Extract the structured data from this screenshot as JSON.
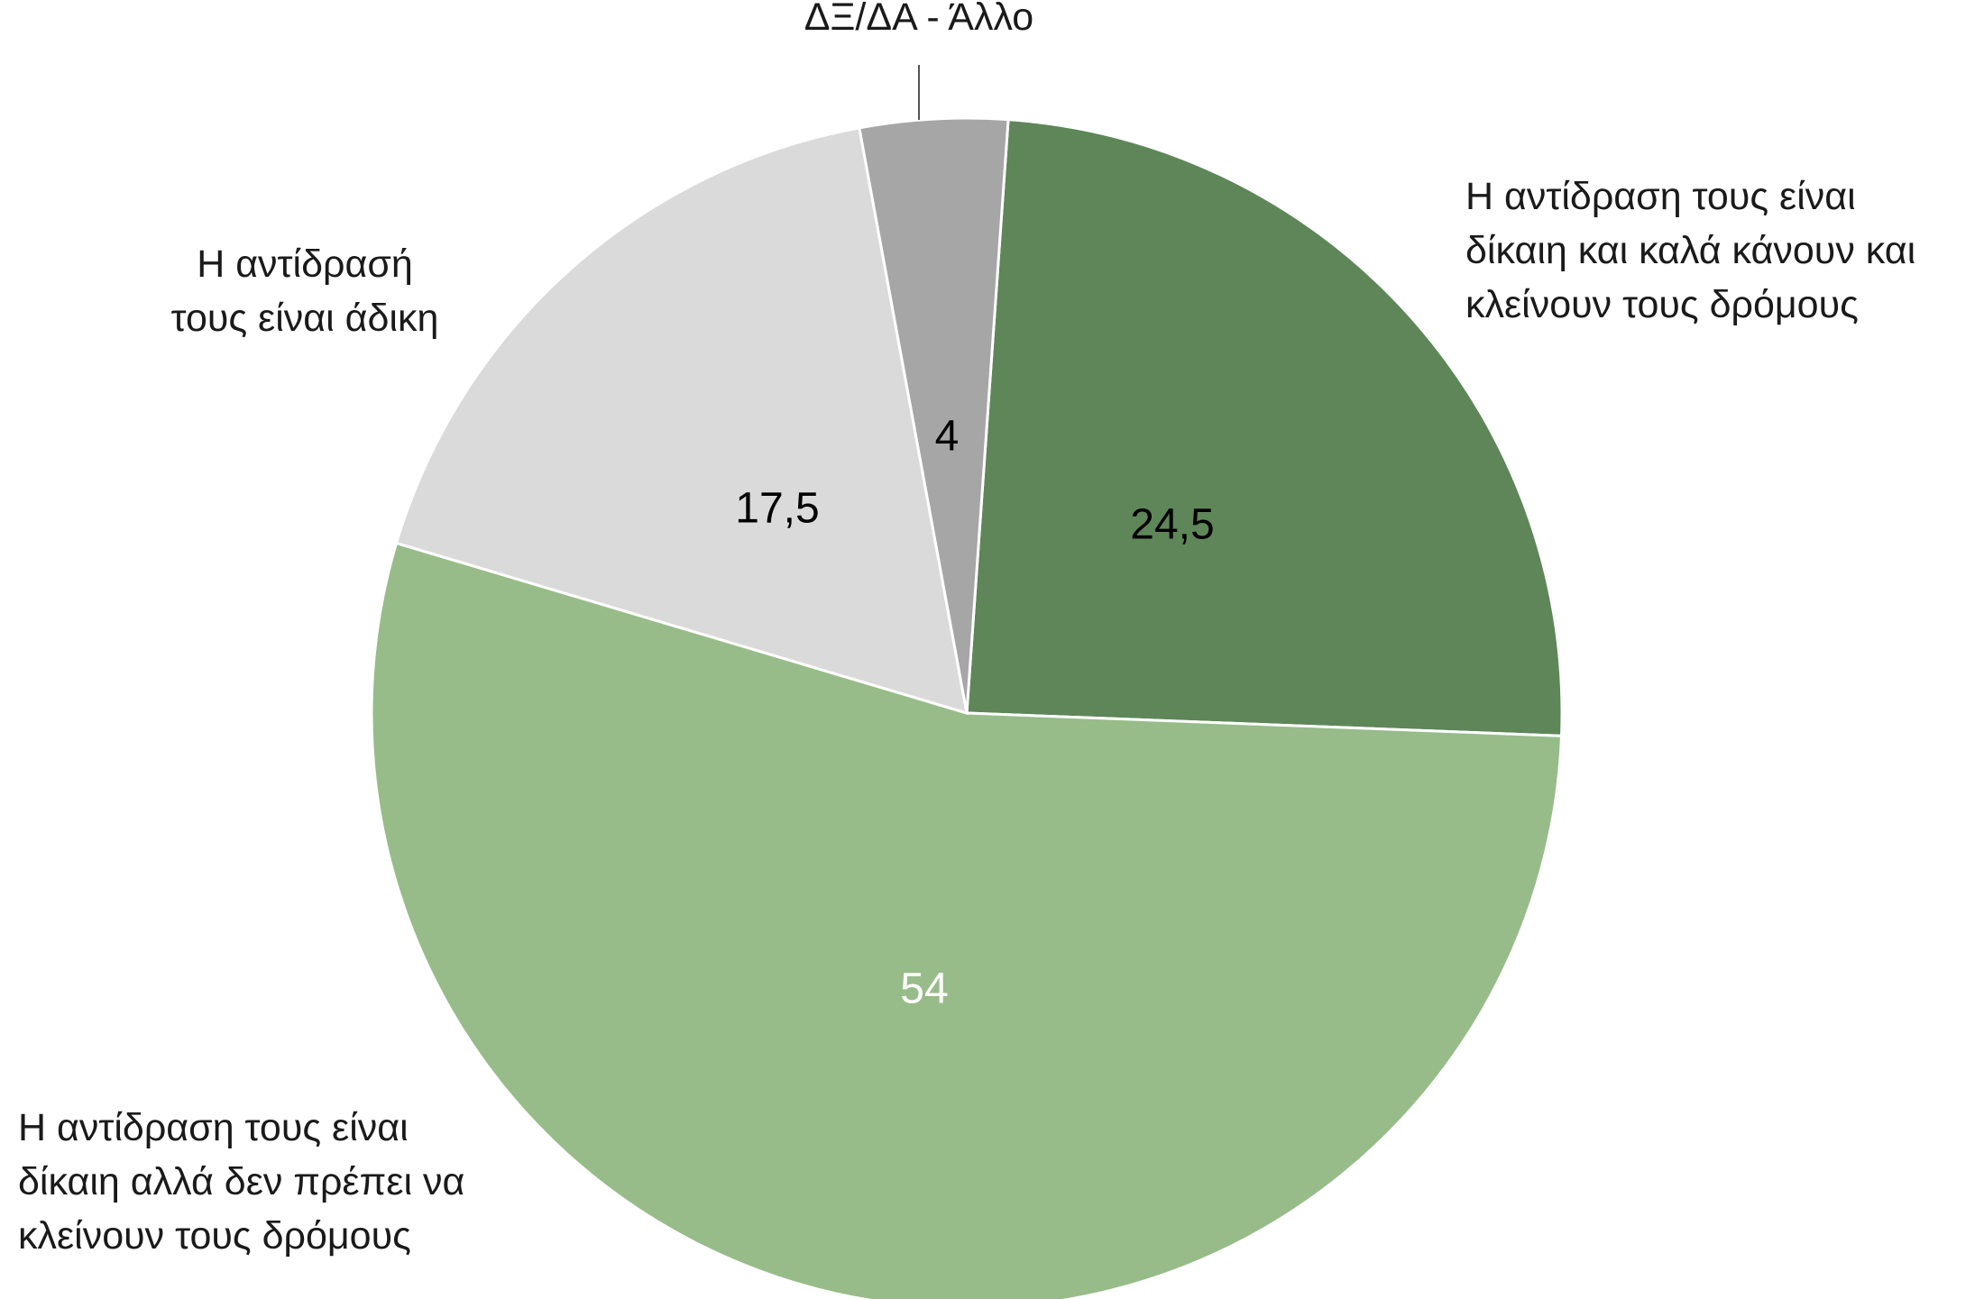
{
  "chart_data": {
    "type": "pie",
    "slices": [
      {
        "label": "Η αντίδραση τους είναι δίκαιη και καλά κάνουν και κλείνουν τους δρόμους",
        "label_lines": [
          "Η αντίδραση τους είναι",
          "δίκαιη και καλά κάνουν και",
          "κλείνουν τους δρόμους"
        ],
        "value": 24.5,
        "value_label": "24,5",
        "color": "#5e8659",
        "value_text_color": "#000000"
      },
      {
        "label": "Η αντίδραση τους είναι δίκαιη αλλά δεν πρέπει να κλείνουν τους δρόμους",
        "label_lines": [
          "Η αντίδραση τους είναι",
          "δίκαιη αλλά δεν πρέπει να",
          "κλείνουν τους δρόμους"
        ],
        "value": 54,
        "value_label": "54",
        "color": "#97bc89",
        "value_text_color": "#ffffff"
      },
      {
        "label": "Η αντίδρασή τους είναι άδικη",
        "label_lines": [
          "Η αντίδρασή",
          "τους είναι άδικη"
        ],
        "value": 17.5,
        "value_label": "17,5",
        "color": "#dadada",
        "value_text_color": "#000000"
      },
      {
        "label": "ΔΞ/ΔΑ - Άλλο",
        "label_lines": [
          "ΔΞ/ΔΑ - Άλλο"
        ],
        "value": 4,
        "value_label": "4",
        "color": "#a6a6a6",
        "value_text_color": "#000000"
      }
    ],
    "start_angle_deg": 4,
    "direction": "clockwise",
    "legend": "none"
  }
}
